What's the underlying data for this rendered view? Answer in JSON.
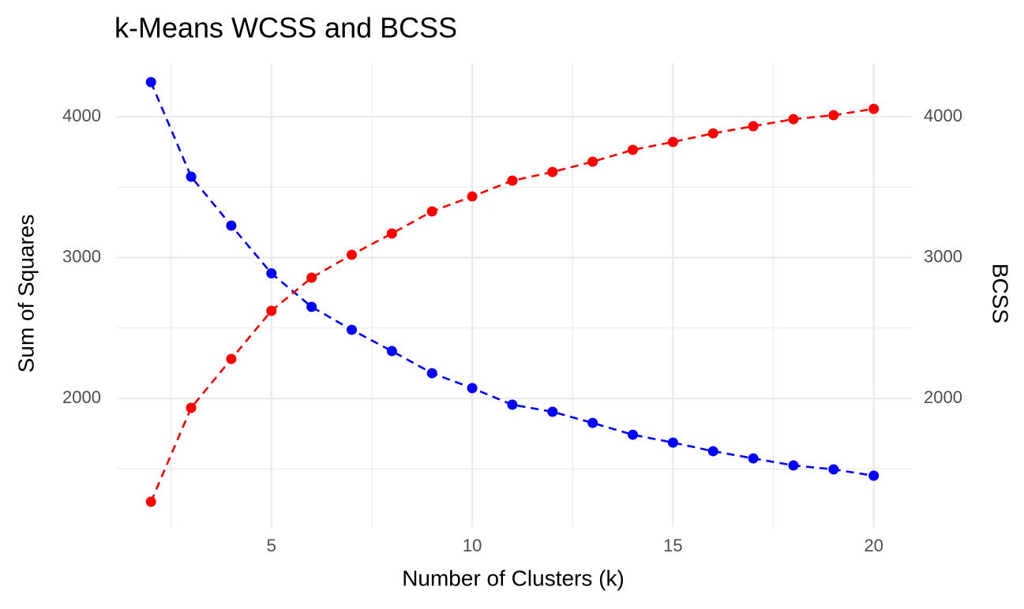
{
  "chart_data": {
    "type": "line",
    "title": "k-Means WCSS and BCSS",
    "x_label": "Number of Clusters (k)",
    "y_label": "Sum of Squares",
    "y2_label": "BCSS",
    "x": [
      2,
      3,
      4,
      5,
      6,
      7,
      8,
      9,
      10,
      11,
      12,
      13,
      14,
      15,
      16,
      17,
      18,
      19,
      20
    ],
    "series": [
      {
        "color": "#0000ff",
        "values": [
          4246,
          3574,
          3227,
          2888,
          2650,
          2487,
          2336,
          2179,
          2073,
          1955,
          1905,
          1826,
          1742,
          1686,
          1625,
          1574,
          1524,
          1496,
          1451
        ]
      },
      {
        "color": "#ff0000",
        "axis": "y2",
        "values": [
          1266,
          1933,
          2280,
          2622,
          2857,
          3020,
          3171,
          3328,
          3434,
          3546,
          3608,
          3681,
          3765,
          3821,
          3882,
          3933,
          3983,
          4011,
          4056
        ]
      }
    ],
    "xlim": [
      1.15,
      20.95
    ],
    "xticks": [
      5,
      10,
      15,
      20
    ],
    "xminor": [
      2.5,
      7.5,
      12.5,
      17.5
    ],
    "ylim": [
      1087,
      4381
    ],
    "yticks": [
      2000,
      3000,
      4000
    ],
    "yminor": [
      1500,
      2500,
      3500
    ],
    "y2lim": [
      1087,
      4381
    ],
    "y2ticks": [
      2000,
      3000,
      4000
    ],
    "grid": true,
    "dashed": true
  }
}
